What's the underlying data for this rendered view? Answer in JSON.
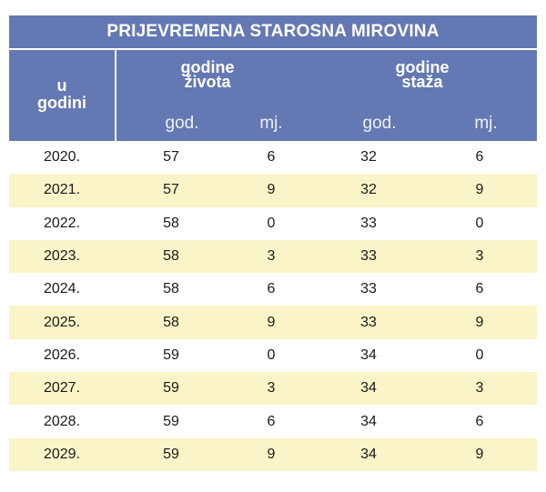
{
  "title": "PRIJEVREMENA STAROSNA MIROVINA",
  "header": {
    "year_label": [
      "u",
      "godini"
    ],
    "life_label": [
      "godine",
      "života"
    ],
    "service_label": [
      "godine",
      "staža"
    ],
    "sub_years": "god.",
    "sub_months": "mj."
  },
  "rows": [
    {
      "year": "2020.",
      "life_y": "57",
      "life_m": "6",
      "serv_y": "32",
      "serv_m": "6"
    },
    {
      "year": "2021.",
      "life_y": "57",
      "life_m": "9",
      "serv_y": "32",
      "serv_m": "9"
    },
    {
      "year": "2022.",
      "life_y": "58",
      "life_m": "0",
      "serv_y": "33",
      "serv_m": "0"
    },
    {
      "year": "2023.",
      "life_y": "58",
      "life_m": "3",
      "serv_y": "33",
      "serv_m": "3"
    },
    {
      "year": "2024.",
      "life_y": "58",
      "life_m": "6",
      "serv_y": "33",
      "serv_m": "6"
    },
    {
      "year": "2025.",
      "life_y": "58",
      "life_m": "9",
      "serv_y": "33",
      "serv_m": "9"
    },
    {
      "year": "2026.",
      "life_y": "59",
      "life_m": "0",
      "serv_y": "34",
      "serv_m": "0"
    },
    {
      "year": "2027.",
      "life_y": "59",
      "life_m": "3",
      "serv_y": "34",
      "serv_m": "3"
    },
    {
      "year": "2028.",
      "life_y": "59",
      "life_m": "6",
      "serv_y": "34",
      "serv_m": "6"
    },
    {
      "year": "2029.",
      "life_y": "59",
      "life_m": "9",
      "serv_y": "34",
      "serv_m": "9"
    }
  ],
  "colors": {
    "header_bg": "#6478b4",
    "alt_row_bg": "#fbf4c8"
  }
}
